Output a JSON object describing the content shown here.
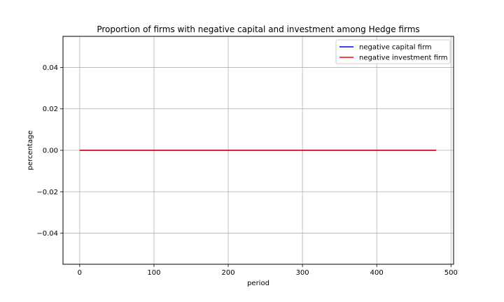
{
  "chart_data": {
    "type": "line",
    "title": "Proportion of firms with negative capital and investment among Hedge firms",
    "xlabel": "period",
    "ylabel": "percentage",
    "xlim": [
      -22.5,
      503.5
    ],
    "ylim": [
      -0.055,
      0.055
    ],
    "xticks": [
      0,
      100,
      200,
      300,
      400,
      500
    ],
    "yticks": [
      -0.04,
      -0.02,
      0.0,
      0.02,
      0.04
    ],
    "xtick_labels": [
      "0",
      "100",
      "200",
      "300",
      "400",
      "500"
    ],
    "ytick_labels": [
      "−0.04",
      "−0.02",
      "0.00",
      "0.02",
      "0.04"
    ],
    "grid": true,
    "legend_position": "top-right",
    "series": [
      {
        "name": "negative capital firm",
        "color": "#0000ff",
        "x": [
          0,
          480
        ],
        "y": [
          0.0,
          0.0
        ]
      },
      {
        "name": "negative investment firm",
        "color": "#ff0000",
        "x": [
          0,
          480
        ],
        "y": [
          0.0,
          0.0
        ]
      }
    ]
  }
}
